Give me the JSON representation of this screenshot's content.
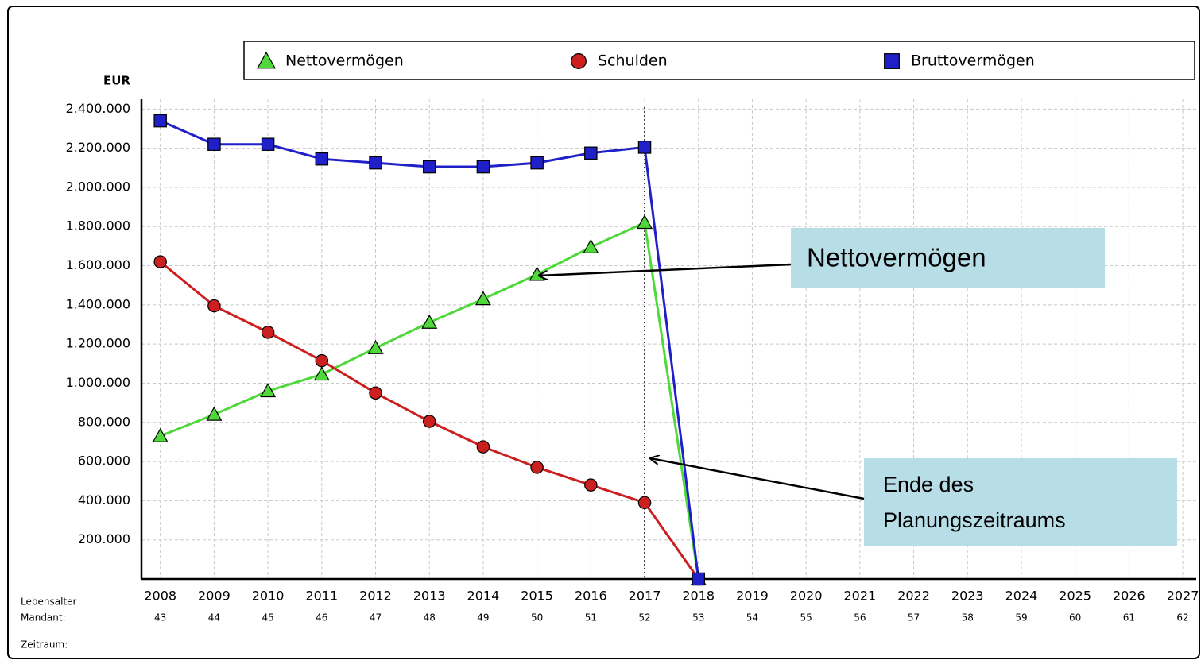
{
  "chart_data": {
    "type": "line",
    "y_axis_label": "EUR",
    "row_labels": [
      "Lebensalter",
      "Mandant:",
      "Zeitraum:"
    ],
    "x": [
      2008,
      2009,
      2010,
      2011,
      2012,
      2013,
      2014,
      2015,
      2016,
      2017,
      2018,
      2019,
      2020,
      2021,
      2022,
      2023,
      2024,
      2025,
      2026,
      2027
    ],
    "ages": [
      "43",
      "44",
      "45",
      "46",
      "47",
      "48",
      "49",
      "50",
      "51",
      "52",
      "53",
      "54",
      "55",
      "56",
      "57",
      "58",
      "59",
      "60",
      "61",
      "62"
    ],
    "xlim": [
      2007.65,
      2027.25
    ],
    "ylim": [
      0,
      2450000
    ],
    "yticks": [
      {
        "value": 200000,
        "label": "200.000"
      },
      {
        "value": 400000,
        "label": "400.000"
      },
      {
        "value": 600000,
        "label": "600.000"
      },
      {
        "value": 800000,
        "label": "800.000"
      },
      {
        "value": 1000000,
        "label": "1.000.000"
      },
      {
        "value": 1200000,
        "label": "1.200.000"
      },
      {
        "value": 1400000,
        "label": "1.400.000"
      },
      {
        "value": 1600000,
        "label": "1.600.000"
      },
      {
        "value": 1800000,
        "label": "1.800.000"
      },
      {
        "value": 2000000,
        "label": "2.000.000"
      },
      {
        "value": 2200000,
        "label": "2.200.000"
      },
      {
        "value": 2400000,
        "label": "2.400.000"
      }
    ],
    "grid": true,
    "end_marker_x": 2017,
    "series": [
      {
        "name": "Nettovermögen",
        "color": "#4fd83a",
        "marker": "triangle",
        "values": [
          730000,
          840000,
          960000,
          1045000,
          1180000,
          1310000,
          1430000,
          1555000,
          1695000,
          1820000,
          0,
          null,
          null,
          null,
          null,
          null,
          null,
          null,
          null,
          null
        ]
      },
      {
        "name": "Schulden",
        "color": "#cc2020",
        "marker": "circle",
        "values": [
          1620000,
          1395000,
          1260000,
          1115000,
          950000,
          805000,
          675000,
          570000,
          480000,
          390000,
          0,
          null,
          null,
          null,
          null,
          null,
          null,
          null,
          null,
          null
        ]
      },
      {
        "name": "Bruttovermögen",
        "color": "#2020c8",
        "marker": "square",
        "values": [
          2340000,
          2220000,
          2220000,
          2145000,
          2125000,
          2105000,
          2105000,
          2125000,
          2175000,
          2205000,
          0,
          null,
          null,
          null,
          null,
          null,
          null,
          null,
          null,
          null
        ]
      }
    ],
    "annotations": [
      {
        "lines": [
          "Nettovermögen"
        ]
      },
      {
        "lines": [
          "Ende des",
          "Planungszeitraums"
        ]
      }
    ]
  }
}
